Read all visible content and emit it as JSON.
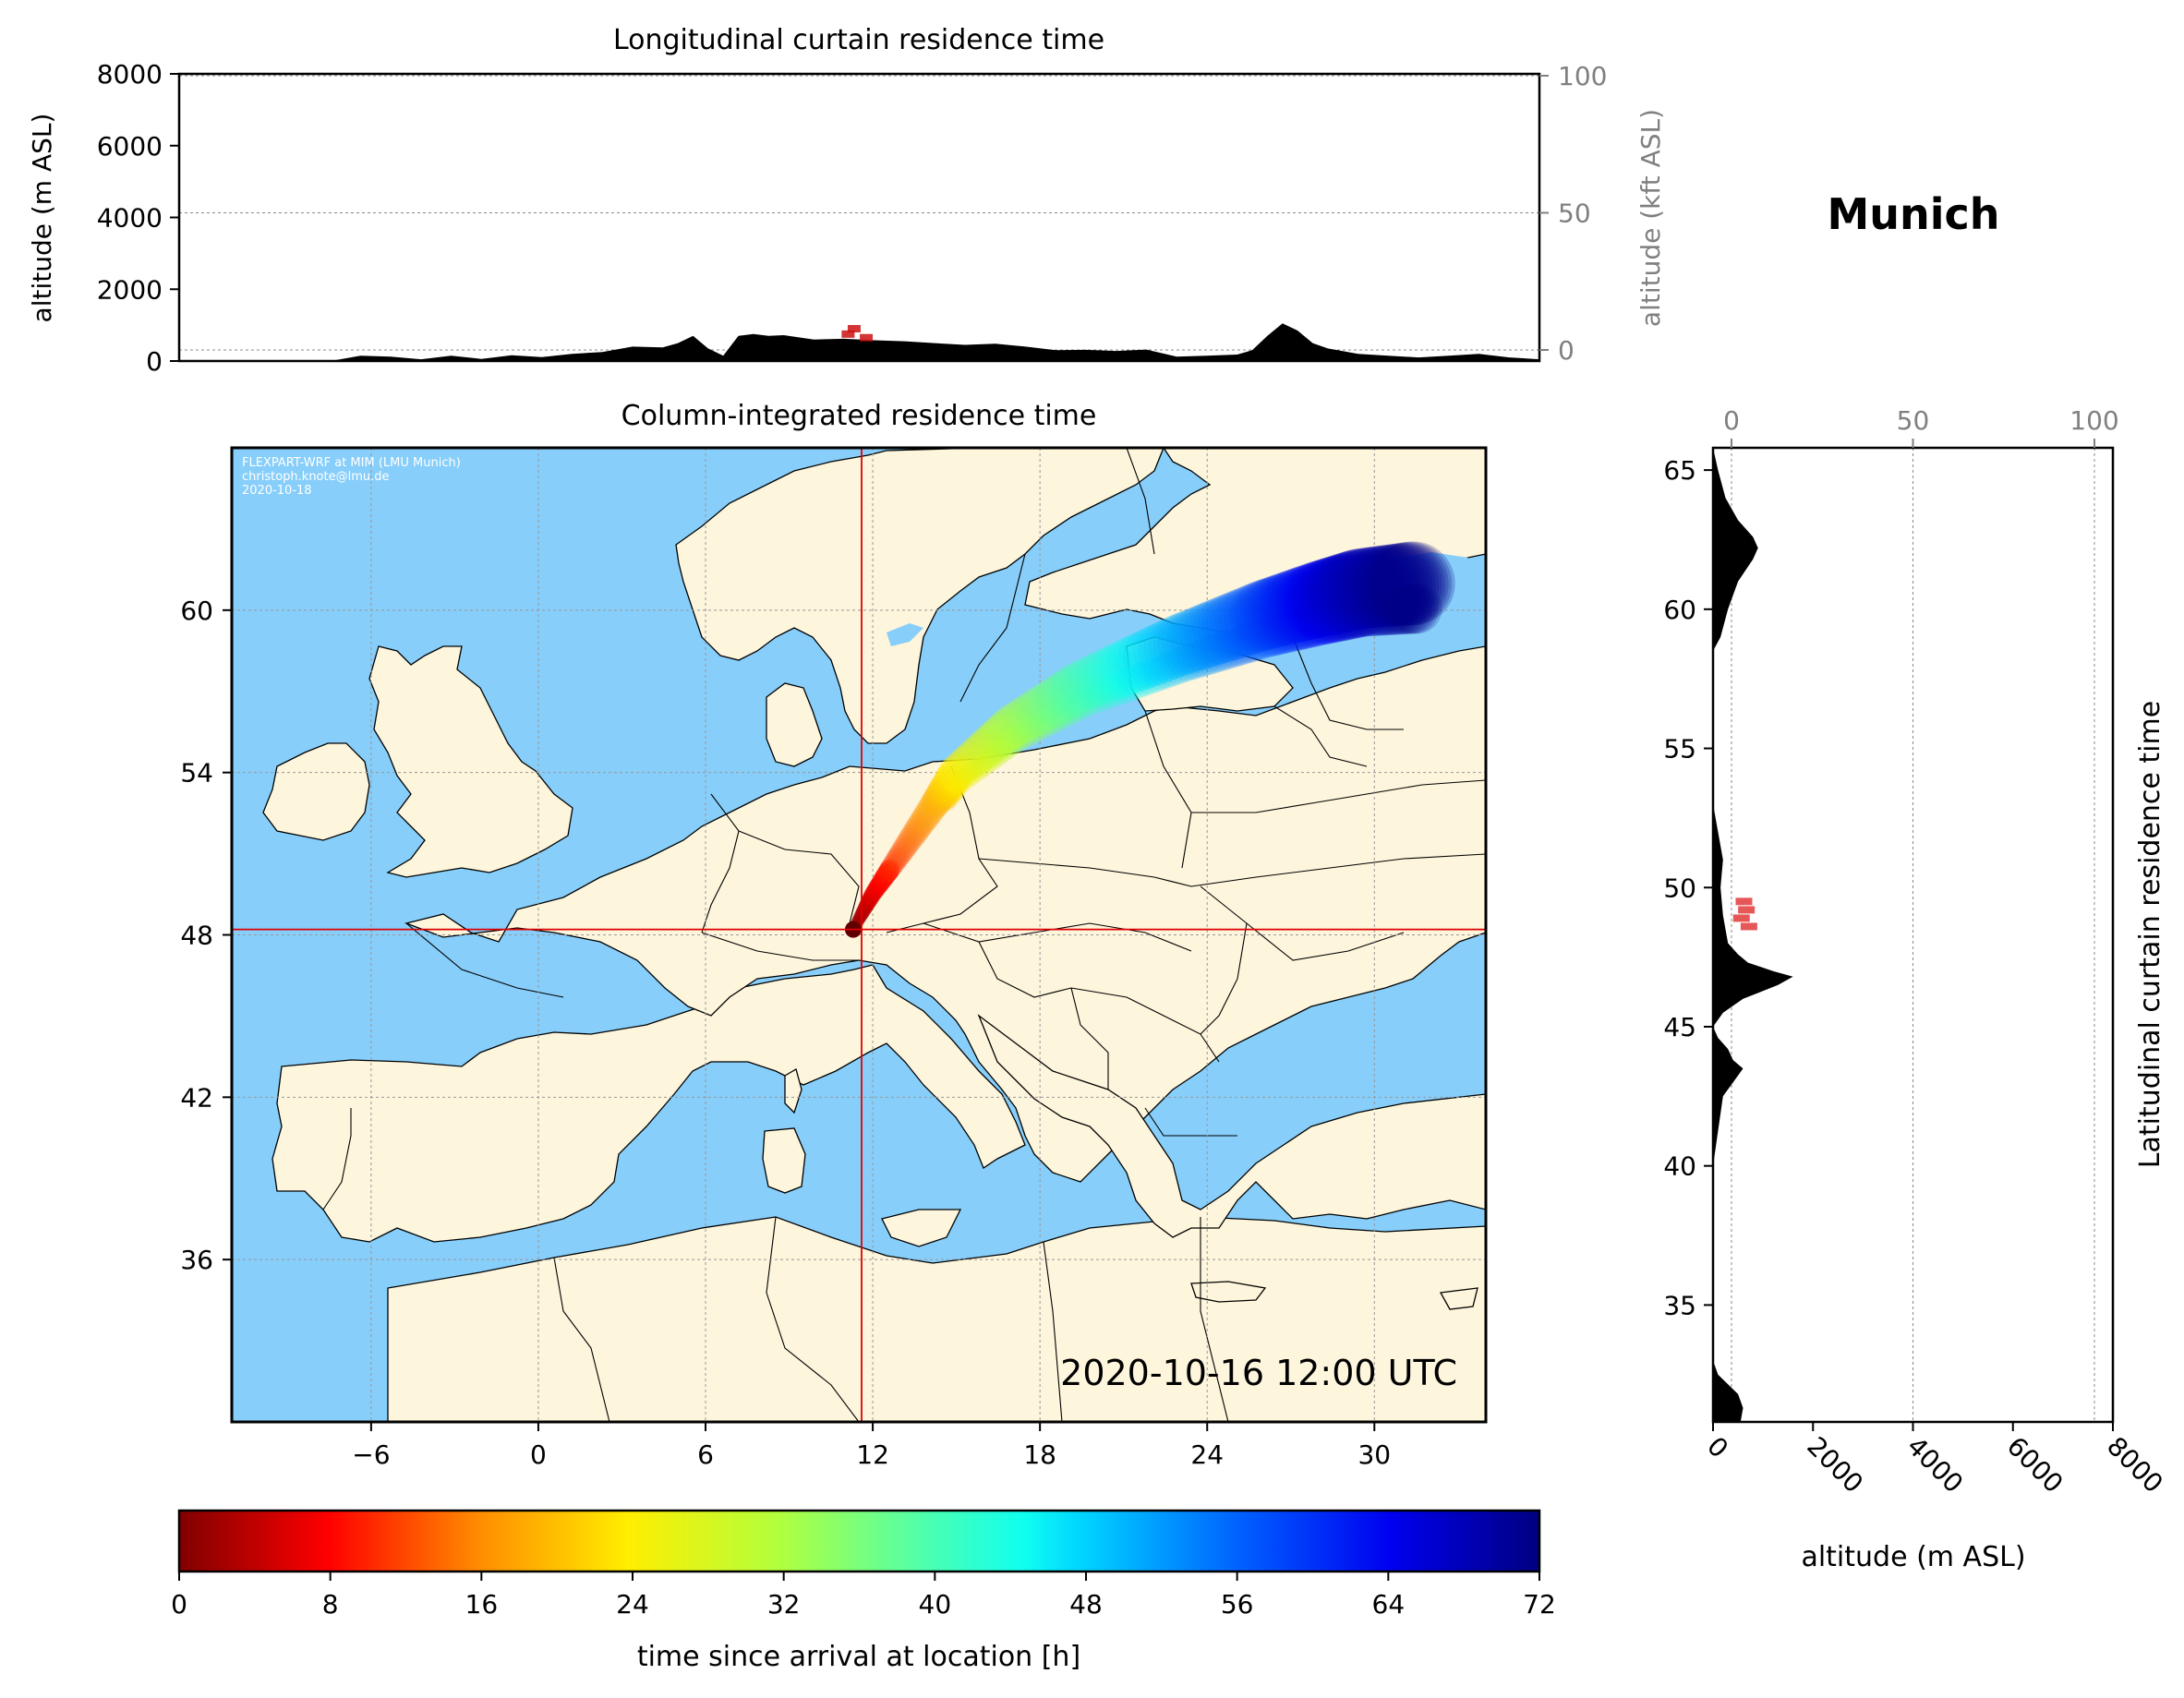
{
  "colors": {
    "ocean": "#87cefa",
    "land": "#fdf5dc",
    "terrain": "#000000",
    "crosshair": "#e00000",
    "gray_text": "#808080",
    "colormap": "jet_r"
  },
  "location": {
    "name": "Munich",
    "lon": 11.6,
    "lat": 48.2
  },
  "credits": [
    "FLEXPART-WRF at MIM (LMU Munich)",
    "christoph.knote@lmu.de",
    "2020-10-18"
  ],
  "timestamp": "2020-10-16 12:00 UTC",
  "chart_data": [
    {
      "type": "area",
      "title": "Longitudinal curtain residence time",
      "ylabel": "altitude (m ASL)",
      "ylabel_right": "altitude (kft ASL)",
      "ylim": [
        0,
        8000
      ],
      "yticks": [
        0,
        2000,
        4000,
        6000,
        8000
      ],
      "ylim_right": [
        0,
        26.2
      ],
      "yticks_right": [
        0,
        50,
        100
      ],
      "xlim": [
        -11,
        34
      ],
      "terrain_profile": {
        "x": [
          -11,
          -6,
          -5,
          -4,
          -3,
          -2,
          -1,
          0,
          1,
          2,
          3,
          4,
          5,
          5.5,
          6,
          6.5,
          7,
          7.5,
          8,
          8.5,
          9,
          10,
          11,
          12,
          13,
          14,
          15,
          16,
          17,
          18,
          19,
          20,
          21,
          22,
          23,
          24,
          24.5,
          25,
          25.5,
          26,
          26.5,
          27,
          28,
          29,
          30,
          31,
          32,
          33,
          34
        ],
        "altitude_m": [
          0,
          0,
          150,
          120,
          50,
          150,
          60,
          160,
          110,
          200,
          250,
          400,
          380,
          500,
          700,
          350,
          150,
          700,
          750,
          700,
          720,
          600,
          620,
          580,
          550,
          500,
          450,
          480,
          400,
          300,
          310,
          280,
          320,
          120,
          150,
          180,
          300,
          700,
          1050,
          850,
          500,
          350,
          200,
          150,
          100,
          150,
          200,
          100,
          50
        ]
      },
      "residence_marks": [
        {
          "lon": 11.1,
          "altitude_m": 750
        },
        {
          "lon": 11.7,
          "altitude_m": 650
        },
        {
          "lon": 11.3,
          "altitude_m": 900
        }
      ]
    },
    {
      "type": "heatmap",
      "title": "Column-integrated residence time",
      "xlim": [
        -11,
        34
      ],
      "ylim": [
        30,
        66
      ],
      "xticks": [
        -6,
        0,
        6,
        12,
        18,
        24,
        30
      ],
      "yticks": [
        36,
        42,
        48,
        54,
        60
      ],
      "trajectory": [
        {
          "lon": 11.3,
          "lat": 48.2,
          "hours": 0
        },
        {
          "lon": 12.0,
          "lat": 49.5,
          "hours": 6
        },
        {
          "lon": 13.0,
          "lat": 51.0,
          "hours": 12
        },
        {
          "lon": 14.2,
          "lat": 52.8,
          "hours": 18
        },
        {
          "lon": 15.0,
          "lat": 54.0,
          "hours": 24
        },
        {
          "lon": 17.0,
          "lat": 55.7,
          "hours": 32
        },
        {
          "lon": 19.5,
          "lat": 57.2,
          "hours": 40
        },
        {
          "lon": 23.0,
          "lat": 58.7,
          "hours": 50
        },
        {
          "lon": 26.0,
          "lat": 59.8,
          "hours": 58
        },
        {
          "lon": 28.0,
          "lat": 60.4,
          "hours": 64
        },
        {
          "lon": 29.5,
          "lat": 60.8,
          "hours": 68
        },
        {
          "lon": 31.5,
          "lat": 61.0,
          "hours": 72
        }
      ]
    },
    {
      "type": "area",
      "title": "Latitudinal curtain residence time",
      "xlabel": "altitude (m ASL)",
      "xlim": [
        0,
        8000
      ],
      "xticks": [
        0,
        2000,
        4000,
        6000,
        8000
      ],
      "xticks_top": [
        0,
        50,
        100
      ],
      "ylim": [
        30.8,
        65.8
      ],
      "yticks": [
        35,
        40,
        45,
        50,
        55,
        60,
        65
      ],
      "terrain_profile": {
        "lat": [
          30.8,
          31.3,
          31.8,
          32.5,
          33,
          36,
          40,
          42.5,
          43,
          43.5,
          43.8,
          44.2,
          44.6,
          45,
          45.5,
          46,
          46.5,
          46.8,
          47,
          47.3,
          47.6,
          48,
          49,
          50,
          51,
          52,
          52.5,
          53,
          56,
          58.5,
          59,
          60,
          61,
          61.8,
          62.2,
          62.6,
          63.2,
          64,
          65,
          65.8
        ],
        "altitude_m": [
          550,
          600,
          500,
          100,
          0,
          0,
          0,
          200,
          400,
          600,
          400,
          300,
          100,
          0,
          200,
          600,
          1300,
          1600,
          1200,
          700,
          500,
          300,
          200,
          150,
          200,
          100,
          50,
          0,
          0,
          0,
          150,
          300,
          500,
          800,
          900,
          800,
          500,
          250,
          100,
          0
        ]
      },
      "residence_marks": [
        {
          "lat": 48.9,
          "altitude_m": 550
        },
        {
          "lat": 49.2,
          "altitude_m": 650
        },
        {
          "lat": 49.5,
          "altitude_m": 600
        },
        {
          "lat": 48.6,
          "altitude_m": 700
        }
      ]
    },
    {
      "type": "colorbar",
      "label": "time since arrival at location [h]",
      "range": [
        0,
        72
      ],
      "ticks": [
        0,
        8,
        16,
        24,
        32,
        40,
        48,
        56,
        64,
        72
      ]
    }
  ]
}
